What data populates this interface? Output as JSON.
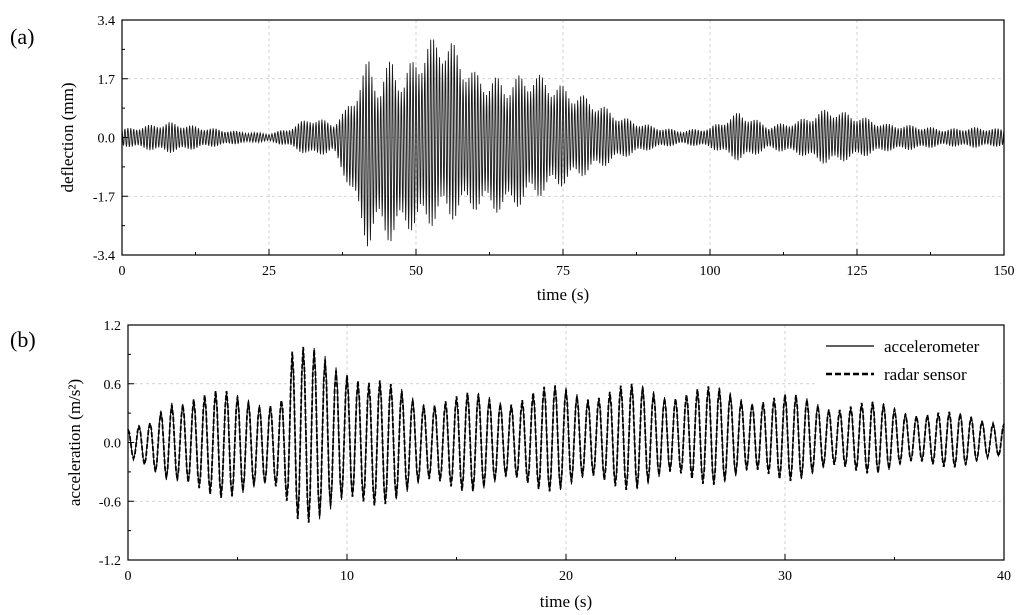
{
  "chart_data": [
    {
      "type": "line",
      "panel_label": "(a)",
      "xlabel": "time (s)",
      "ylabel": "deflection (mm)",
      "xlim": [
        0,
        150
      ],
      "ylim": [
        -3.4,
        3.4
      ],
      "xticks": [
        "0",
        "25",
        "50",
        "75",
        "100",
        "125",
        "150"
      ],
      "yticks": [
        "-3.4",
        "-1.7",
        "0.0",
        "1.7",
        "3.4"
      ],
      "grid": true,
      "series": [
        {
          "name": "",
          "signal": "oscillation",
          "color": "#1a1a1a",
          "oscillation_frequency_hz": 2.0,
          "envelope": {
            "x": [
              0,
              8,
              14,
              20,
              25,
              28,
              32,
              36,
              38,
              40,
              42,
              44,
              46,
              48,
              50,
              52,
              54,
              56,
              60,
              65,
              70,
              75,
              80,
              85,
              90,
              95,
              100,
              105,
              110,
              115,
              120,
              125,
              130,
              135,
              140,
              145,
              150
            ],
            "upper": [
              0.25,
              0.45,
              0.3,
              0.18,
              0.12,
              0.25,
              0.6,
              0.45,
              0.8,
              1.6,
              2.3,
              1.7,
              2.4,
              1.8,
              2.5,
              2.8,
              3.0,
              2.8,
              1.9,
              1.7,
              1.9,
              1.5,
              1.1,
              0.6,
              0.35,
              0.2,
              0.3,
              0.75,
              0.35,
              0.5,
              0.85,
              0.65,
              0.4,
              0.35,
              0.25,
              0.3,
              0.25
            ],
            "lower": [
              -0.25,
              -0.45,
              -0.3,
              -0.18,
              -0.12,
              -0.25,
              -0.55,
              -0.45,
              -1.2,
              -2.2,
              -3.3,
              -2.6,
              -3.2,
              -2.6,
              -2.8,
              -2.6,
              -2.5,
              -2.4,
              -2.1,
              -2.2,
              -1.8,
              -1.4,
              -1.0,
              -0.6,
              -0.35,
              -0.2,
              -0.3,
              -0.7,
              -0.35,
              -0.5,
              -0.8,
              -0.6,
              -0.4,
              -0.35,
              -0.25,
              -0.3,
              -0.25
            ]
          }
        }
      ]
    },
    {
      "type": "line",
      "panel_label": "(b)",
      "xlabel": "time (s)",
      "ylabel": "acceleration (m/s²)",
      "xlim": [
        0,
        40
      ],
      "ylim": [
        -1.2,
        1.2
      ],
      "xticks": [
        "0",
        "10",
        "20",
        "30",
        "40"
      ],
      "yticks": [
        "-1.2",
        "-0.6",
        "0.0",
        "0.6",
        "1.2"
      ],
      "grid": true,
      "legend_position": "top-right",
      "series": [
        {
          "name": "accelerometer",
          "signal": "oscillation",
          "line_style": "solid",
          "color": "#000000",
          "oscillation_frequency_hz": 2.0,
          "envelope": {
            "x": [
              0,
              1,
              2,
              3,
              5,
              7,
              7.5,
              8,
              10,
              11,
              12,
              13,
              15,
              18,
              20,
              22,
              25,
              28,
              30,
              32,
              35,
              38,
              40
            ],
            "upper": [
              0.15,
              0.2,
              0.5,
              0.6,
              0.5,
              0.55,
              1.0,
              0.98,
              0.95,
              0.7,
              0.6,
              0.55,
              0.5,
              0.55,
              0.6,
              0.6,
              0.6,
              0.55,
              0.5,
              0.45,
              0.4,
              0.3,
              0.25
            ],
            "lower": [
              -0.15,
              -0.25,
              -0.5,
              -0.6,
              -0.55,
              -0.6,
              -0.8,
              -0.82,
              -0.82,
              -0.72,
              -0.6,
              -0.55,
              -0.5,
              -0.5,
              -0.5,
              -0.5,
              -0.45,
              -0.42,
              -0.4,
              -0.35,
              -0.3,
              -0.25,
              -0.2
            ]
          }
        },
        {
          "name": "radar sensor",
          "signal": "oscillation",
          "line_style": "dashed",
          "color": "#000000",
          "oscillation_frequency_hz": 2.0,
          "envelope": {
            "x": [
              0,
              1,
              2,
              3,
              5,
              7,
              7.5,
              8,
              10,
              11,
              12,
              13,
              15,
              18,
              20,
              22,
              25,
              28,
              30,
              32,
              35,
              38,
              40
            ],
            "upper": [
              0.15,
              0.2,
              0.5,
              0.6,
              0.5,
              0.55,
              1.0,
              0.98,
              0.95,
              0.7,
              0.6,
              0.55,
              0.5,
              0.55,
              0.6,
              0.6,
              0.6,
              0.55,
              0.5,
              0.45,
              0.4,
              0.3,
              0.25
            ],
            "lower": [
              -0.15,
              -0.25,
              -0.5,
              -0.6,
              -0.55,
              -0.6,
              -0.8,
              -0.82,
              -0.82,
              -0.72,
              -0.6,
              -0.55,
              -0.5,
              -0.5,
              -0.5,
              -0.5,
              -0.45,
              -0.42,
              -0.4,
              -0.35,
              -0.3,
              -0.25,
              -0.2
            ]
          }
        }
      ]
    }
  ]
}
